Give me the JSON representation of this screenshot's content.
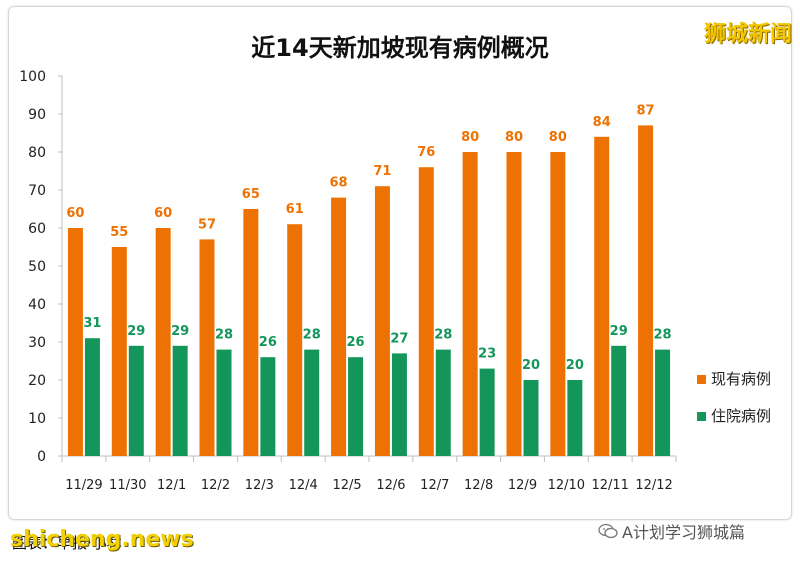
{
  "chart_data": {
    "type": "bar",
    "title": "近14天新加坡现有病例概况",
    "categories": [
      "11/29",
      "11/30",
      "12/1",
      "12/2",
      "12/3",
      "12/4",
      "12/5",
      "12/6",
      "12/7",
      "12/8",
      "12/9",
      "12/10",
      "12/11",
      "12/12"
    ],
    "series": [
      {
        "name": "现有病例",
        "color": "#ee7203",
        "values": [
          60,
          55,
          60,
          57,
          65,
          61,
          68,
          71,
          76,
          80,
          80,
          80,
          84,
          87
        ]
      },
      {
        "name": "住院病例",
        "color": "#14955a",
        "values": [
          31,
          29,
          29,
          28,
          26,
          28,
          26,
          27,
          28,
          23,
          20,
          20,
          29,
          28
        ]
      }
    ],
    "ylim": [
      0,
      100
    ],
    "yticks": [
      0,
      10,
      20,
      30,
      40,
      50,
      60,
      70,
      80,
      90,
      100
    ],
    "grid": false,
    "legend": "right",
    "xlabel": "",
    "ylabel": ""
  },
  "brand": "狮城新闻",
  "footer": {
    "source": "图表：早报·小林",
    "site": "shicheng.news",
    "wechat": "A计划学习狮城篇"
  }
}
